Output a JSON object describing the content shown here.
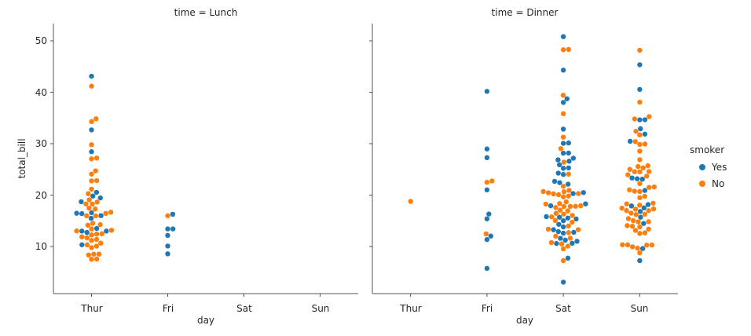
{
  "chart_data": {
    "type": "scatter",
    "subtype": "swarm-catplot",
    "facet_by": "time",
    "hue": "smoker",
    "xlabel": "day",
    "ylabel": "total_bill",
    "categories": [
      "Thur",
      "Fri",
      "Sat",
      "Sun"
    ],
    "yticks": [
      10,
      20,
      30,
      40,
      50
    ],
    "ylim": [
      0.8,
      53.4
    ],
    "grid": false,
    "legend": {
      "title": "smoker",
      "position": "right",
      "entries": [
        {
          "label": "Yes",
          "color": "#1f77b4"
        },
        {
          "label": "No",
          "color": "#ff7f0e"
        }
      ]
    },
    "facets": [
      {
        "title": "time = Lunch",
        "points": {
          "Thur": {
            "Yes": [
              19.44,
              32.68,
              16.0,
              19.81,
              28.44,
              15.48,
              16.58,
              10.34,
              43.11,
              13.0,
              13.51,
              18.71,
              12.74,
              13.0,
              16.4,
              20.53,
              16.47
            ],
            "No": [
              27.2,
              22.76,
              17.29,
              16.66,
              10.07,
              15.98,
              34.83,
              13.03,
              18.28,
              24.71,
              21.16,
              10.65,
              12.43,
              24.08,
              11.69,
              13.42,
              14.26,
              15.95,
              12.48,
              29.8,
              8.52,
              14.52,
              11.38,
              22.82,
              19.08,
              20.27,
              11.17,
              12.26,
              18.26,
              8.51,
              10.33,
              14.15,
              13.16,
              17.47,
              34.3,
              41.19,
              16.43,
              8.35,
              18.64,
              11.87,
              9.78,
              7.51,
              7.56,
              27.05
            ]
          },
          "Fri": {
            "Yes": [
              12.16,
              13.42,
              8.58,
              13.42,
              16.27,
              10.09
            ],
            "No": [
              15.98
            ]
          },
          "Sat": {
            "Yes": [],
            "No": []
          },
          "Sun": {
            "Yes": [],
            "No": []
          }
        }
      },
      {
        "title": "time = Dinner",
        "points": {
          "Thur": {
            "Yes": [],
            "No": [
              18.78
            ]
          },
          "Fri": {
            "Yes": [
              28.97,
              5.75,
              16.32,
              40.17,
              27.28,
              12.03,
              21.01,
              11.35,
              15.38
            ],
            "No": [
              22.49,
              22.75,
              12.46
            ]
          },
          "Sat": {
            "Yes": [
              38.01,
              11.24,
              20.29,
              13.81,
              11.02,
              18.29,
              3.07,
              15.01,
              26.86,
              25.28,
              17.92,
              44.3,
              22.42,
              15.36,
              20.49,
              25.21,
              14.31,
              10.59,
              10.63,
              50.81,
              15.81,
              26.59,
              38.73,
              24.27,
              12.76,
              30.06,
              25.89,
              13.27,
              28.17,
              12.9,
              28.15,
              11.59,
              7.74,
              30.14,
              22.12,
              24.01,
              15.69,
              15.53,
              12.6,
              32.83,
              27.18,
              22.67
            ],
            "No": [
              20.65,
              17.92,
              20.29,
              15.77,
              39.42,
              19.82,
              17.81,
              13.37,
              12.69,
              21.7,
              19.65,
              9.55,
              18.35,
              15.06,
              20.69,
              17.78,
              24.06,
              16.31,
              16.93,
              18.69,
              31.27,
              16.04,
              26.41,
              48.27,
              17.59,
              20.08,
              16.45,
              20.23,
              12.02,
              17.07,
              14.73,
              10.51,
              20.92,
              18.24,
              14.0,
              7.25,
              48.33,
              20.45,
              13.28,
              11.61,
              10.77,
              10.07,
              35.83,
              29.03,
              17.82
            ]
          },
          "Sun": {
            "Yes": [
              17.51,
              31.85,
              16.82,
              32.9,
              17.89,
              14.48,
              9.6,
              34.63,
              34.65,
              23.33,
              45.35,
              23.17,
              40.55,
              20.9,
              30.46,
              18.15,
              23.1,
              15.69,
              7.25
            ],
            "No": [
              16.99,
              10.34,
              21.01,
              23.68,
              24.59,
              25.29,
              8.77,
              26.88,
              15.04,
              14.78,
              10.27,
              35.26,
              15.42,
              18.43,
              14.83,
              21.58,
              10.33,
              16.29,
              16.97,
              17.46,
              13.94,
              9.68,
              30.4,
              18.29,
              22.23,
              32.4,
              28.55,
              18.04,
              12.54,
              10.29,
              34.81,
              9.94,
              25.56,
              19.49,
              38.07,
              23.95,
              25.71,
              17.31,
              29.93,
              14.07,
              13.13,
              17.26,
              24.55,
              19.77,
              29.85,
              48.17,
              25.0,
              13.39,
              16.49,
              21.5,
              12.66,
              16.21,
              13.81,
              24.52,
              20.76,
              31.71,
              20.69
            ]
          }
        }
      }
    ]
  }
}
